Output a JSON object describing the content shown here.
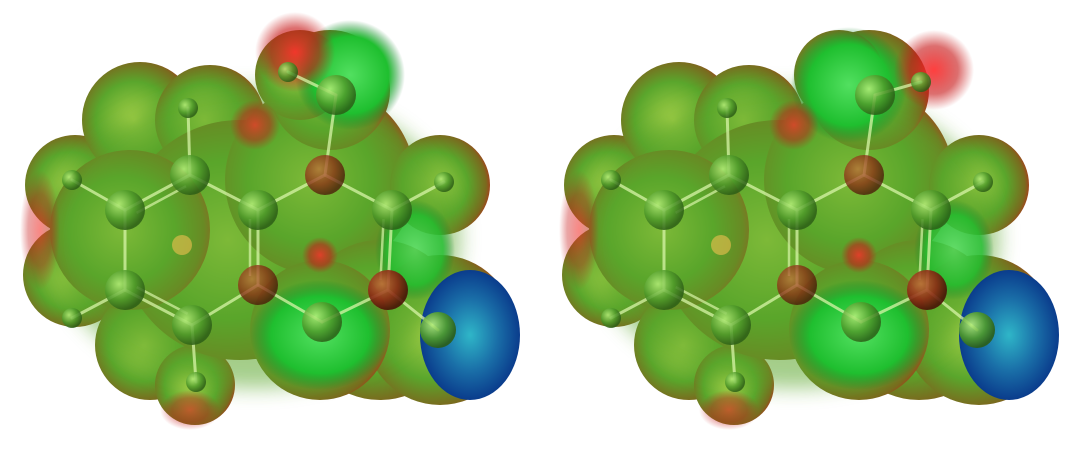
{
  "figure": {
    "panels": [
      {
        "id": "conformer-a",
        "hydroxyl_h_side": "left"
      },
      {
        "id": "conformer-b",
        "hydroxyl_h_side": "right"
      }
    ],
    "colors": {
      "surface_mid": "#5aa62c",
      "surface_negative": "#d01818",
      "surface_positive": "#0a3c8c",
      "surface_green": "#1fbf2f",
      "atom_fill": "#4f9a2a",
      "atom_dark": "#8c2a14",
      "bond": "#d8f5a8"
    }
  }
}
